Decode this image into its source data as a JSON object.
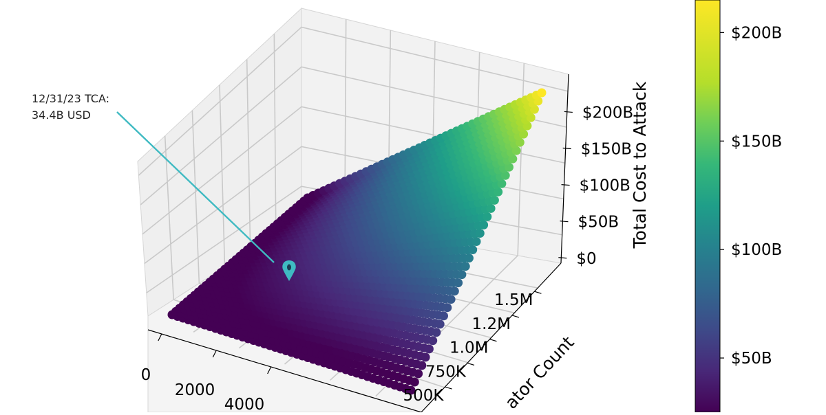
{
  "chart_data": {
    "type": "scatter3d",
    "title": "",
    "xlabel": "",
    "ylabel": "ator Count",
    "zlabel": "Total Cost to Attack",
    "x_ticks": [
      "0",
      "2000",
      "4000"
    ],
    "y_ticks": [
      "500K",
      "750K",
      "1.0M",
      "1.2M",
      "1.5M"
    ],
    "z_ticks": [
      "$0",
      "$50B",
      "$100B",
      "$150B",
      "$200B"
    ],
    "colorbar": {
      "ticks": [
        "$50B",
        "$100B",
        "$150B",
        "$200B"
      ],
      "tick_values": [
        50,
        100,
        150,
        200
      ],
      "range": [
        25,
        215
      ],
      "colormap": "viridis"
    },
    "surface": {
      "description_points": [
        {
          "x": 0,
          "y": 0,
          "z": 0
        },
        {
          "x": 8000,
          "y": 0,
          "z": 0
        },
        {
          "x": 0,
          "y": 1600000,
          "z": 0
        },
        {
          "x": 8000,
          "y": 1600000,
          "z": 215
        }
      ],
      "z_max": 215
    },
    "annotation": {
      "text_line1": "12/31/23 TCA:",
      "text_line2": "34.4B USD",
      "value": 34.4,
      "color": "#3fbac2"
    },
    "grid": true
  }
}
